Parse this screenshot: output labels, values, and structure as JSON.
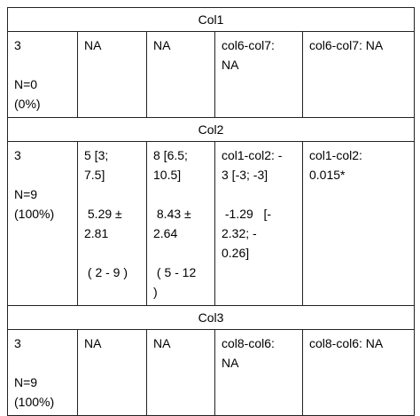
{
  "table": {
    "sections": [
      {
        "title": "Col1",
        "cells": [
          [
            [
              "3"
            ],
            [
              "N=0",
              "(0%)"
            ]
          ],
          [
            [
              "NA"
            ]
          ],
          [
            [
              "NA"
            ]
          ],
          [
            [
              "col6-col7:",
              "NA"
            ]
          ],
          [
            [
              "col6-col7: NA"
            ]
          ]
        ]
      },
      {
        "title": "Col2",
        "cells": [
          [
            [
              "3"
            ],
            [
              "N=9",
              "(100%)"
            ]
          ],
          [
            [
              "5 [3;",
              "7.5]"
            ],
            [
              " 5.29 ±",
              "2.81"
            ],
            [
              " ( 2 - 9 )"
            ]
          ],
          [
            [
              "8 [6.5;",
              "10.5]"
            ],
            [
              " 8.43 ±",
              "2.64"
            ],
            [
              " ( 5 - 12",
              ")"
            ]
          ],
          [
            [
              "col1-col2: -",
              "3 [-3; -3]"
            ],
            [
              " -1.29   [-",
              "2.32; -",
              "0.26]"
            ]
          ],
          [
            [
              "col1-col2:",
              "0.015*"
            ]
          ]
        ]
      },
      {
        "title": "Col3",
        "cells": [
          [
            [
              "3"
            ],
            [
              "N=9",
              "(100%)"
            ]
          ],
          [
            [
              "NA"
            ]
          ],
          [
            [
              "NA"
            ]
          ],
          [
            [
              "col8-col6:",
              "NA"
            ]
          ],
          [
            [
              "col8-col6: NA"
            ]
          ]
        ]
      }
    ]
  }
}
